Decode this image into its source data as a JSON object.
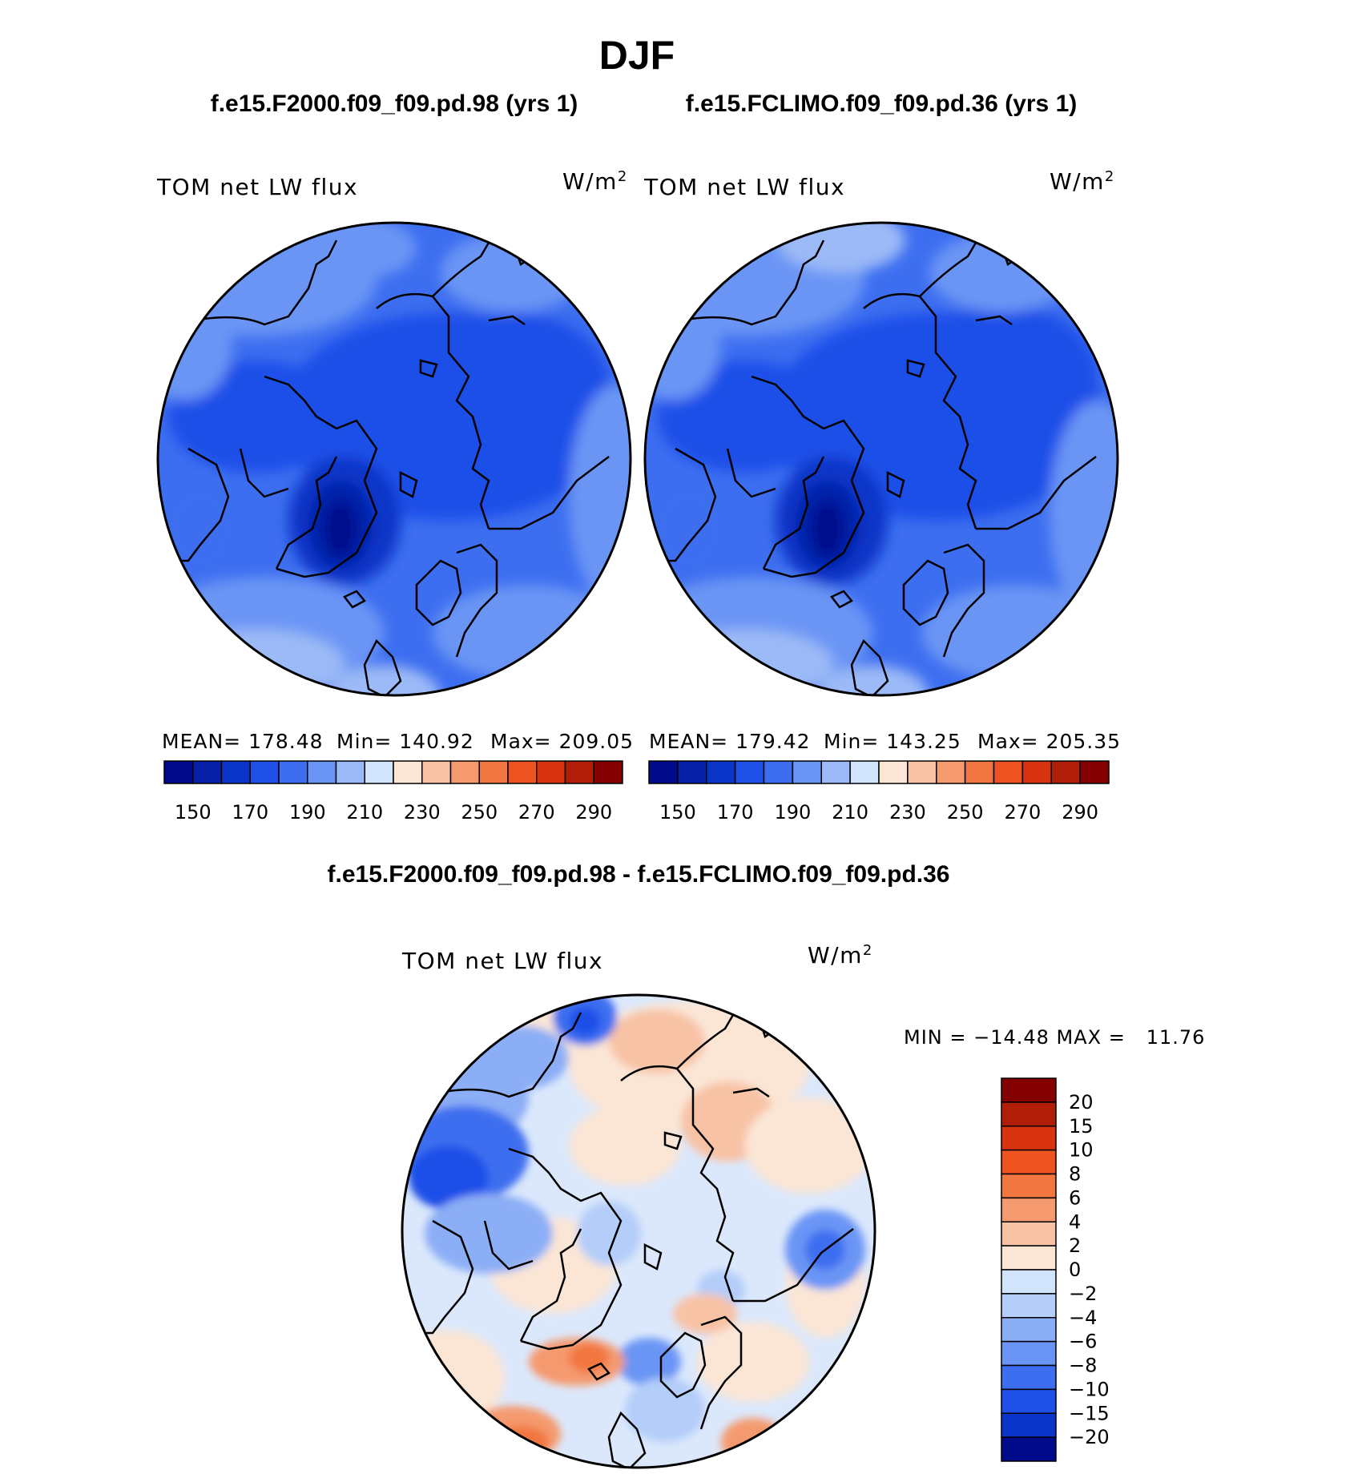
{
  "title": "DJF",
  "left_panel": {
    "case": "f.e15.F2000.f09_f09.pd.98 (yrs 1)",
    "variable": "TOM net LW flux",
    "units": "W/m",
    "units_exp": "2",
    "mean": "MEAN= 178.48",
    "min": "Min= 140.92",
    "max": "Max= 209.05"
  },
  "right_panel": {
    "case": "f.e15.FCLIMO.f09_f09.pd.36 (yrs 1)",
    "variable": "TOM net LW flux",
    "units": "W/m",
    "units_exp": "2",
    "mean": "MEAN= 179.42",
    "min": "Min= 143.25",
    "max": "Max= 205.35"
  },
  "diff_panel": {
    "title": "f.e15.F2000.f09_f09.pd.98 - f.e15.FCLIMO.f09_f09.pd.36",
    "variable": "TOM net LW flux",
    "units": "W/m",
    "units_exp": "2",
    "minmax": "MIN = −14.48 MAX =   11.76"
  },
  "chart_data": [
    {
      "type": "map",
      "projection": "north-polar-stereographic",
      "title": "f.e15.F2000.f09_f09.pd.98 (yrs 1)",
      "field": "TOM net LW flux",
      "units": "W/m2",
      "stats": {
        "mean": 178.48,
        "min": 140.92,
        "max": 209.05
      },
      "colorbar_levels": [
        150,
        170,
        190,
        210,
        230,
        250,
        270,
        290
      ],
      "colorbar_colors": [
        "#000b8c",
        "#0620a8",
        "#0a35c8",
        "#1f50e8",
        "#3d6ef0",
        "#6a95f5",
        "#9cbaf7",
        "#d2e4fb",
        "#fbe6d6",
        "#f8c2a5",
        "#f59a6e",
        "#f2763f",
        "#ee5320",
        "#d83410",
        "#b01e08",
        "#850000"
      ]
    },
    {
      "type": "map",
      "projection": "north-polar-stereographic",
      "title": "f.e15.FCLIMO.f09_f09.pd.36 (yrs 1)",
      "field": "TOM net LW flux",
      "units": "W/m2",
      "stats": {
        "mean": 179.42,
        "min": 143.25,
        "max": 205.35
      },
      "colorbar_levels": [
        150,
        170,
        190,
        210,
        230,
        250,
        270,
        290
      ],
      "colorbar_colors": [
        "#000b8c",
        "#0620a8",
        "#0a35c8",
        "#1f50e8",
        "#3d6ef0",
        "#6a95f5",
        "#9cbaf7",
        "#d2e4fb",
        "#fbe6d6",
        "#f8c2a5",
        "#f59a6e",
        "#f2763f",
        "#ee5320",
        "#d83410",
        "#b01e08",
        "#850000"
      ]
    },
    {
      "type": "map",
      "projection": "north-polar-stereographic",
      "title": "f.e15.F2000.f09_f09.pd.98 - f.e15.FCLIMO.f09_f09.pd.36",
      "field": "TOM net LW flux",
      "units": "W/m2",
      "stats": {
        "min": -14.48,
        "max": 11.76
      },
      "colorbar_levels": [
        "20",
        "15",
        "10",
        "8",
        "6",
        "4",
        "2",
        "0",
        "−2",
        "−4",
        "−6",
        "−8",
        "−10",
        "−15",
        "−20"
      ],
      "colorbar_colors": [
        "#850000",
        "#b01e08",
        "#d83410",
        "#ee5320",
        "#f2763f",
        "#f59a6e",
        "#f8c2a5",
        "#fbe6d6",
        "#d2e4fb",
        "#b4cdf9",
        "#8caef6",
        "#6a95f5",
        "#3d6ef0",
        "#1f50e8",
        "#0a35c8",
        "#000b8c"
      ]
    }
  ]
}
